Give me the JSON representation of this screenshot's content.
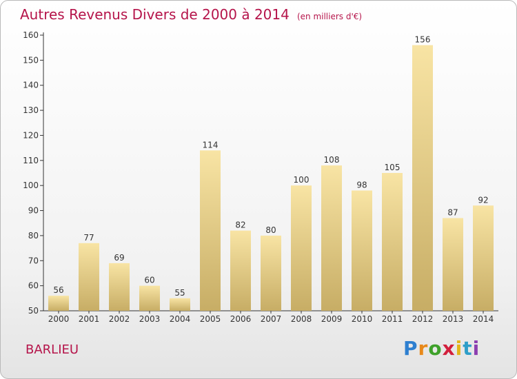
{
  "header": {
    "title": "Autres Revenus Divers de 2000 à 2014",
    "unit_note": "(en milliers d'€)"
  },
  "footer": {
    "place": "BARLIEU",
    "logo_text": "Proxiti"
  },
  "colors": {
    "title": "#b5144a",
    "bar_light": "#f8e4a4",
    "bar_dark": "#c7ad65",
    "axis": "#333333"
  },
  "chart_data": {
    "type": "bar",
    "title": "Autres Revenus Divers de 2000 à 2014",
    "subtitle": "(en milliers d'€)",
    "xlabel": "",
    "ylabel": "",
    "categories": [
      "2000",
      "2001",
      "2002",
      "2003",
      "2004",
      "2005",
      "2006",
      "2007",
      "2008",
      "2009",
      "2010",
      "2011",
      "2012",
      "2013",
      "2014"
    ],
    "values": [
      56,
      77,
      69,
      60,
      55,
      114,
      82,
      80,
      100,
      108,
      98,
      105,
      156,
      87,
      92
    ],
    "ylim": [
      50,
      160
    ],
    "yticks": [
      50,
      60,
      70,
      80,
      90,
      100,
      110,
      120,
      130,
      140,
      150,
      160
    ],
    "grid": false,
    "data_labels": true
  }
}
